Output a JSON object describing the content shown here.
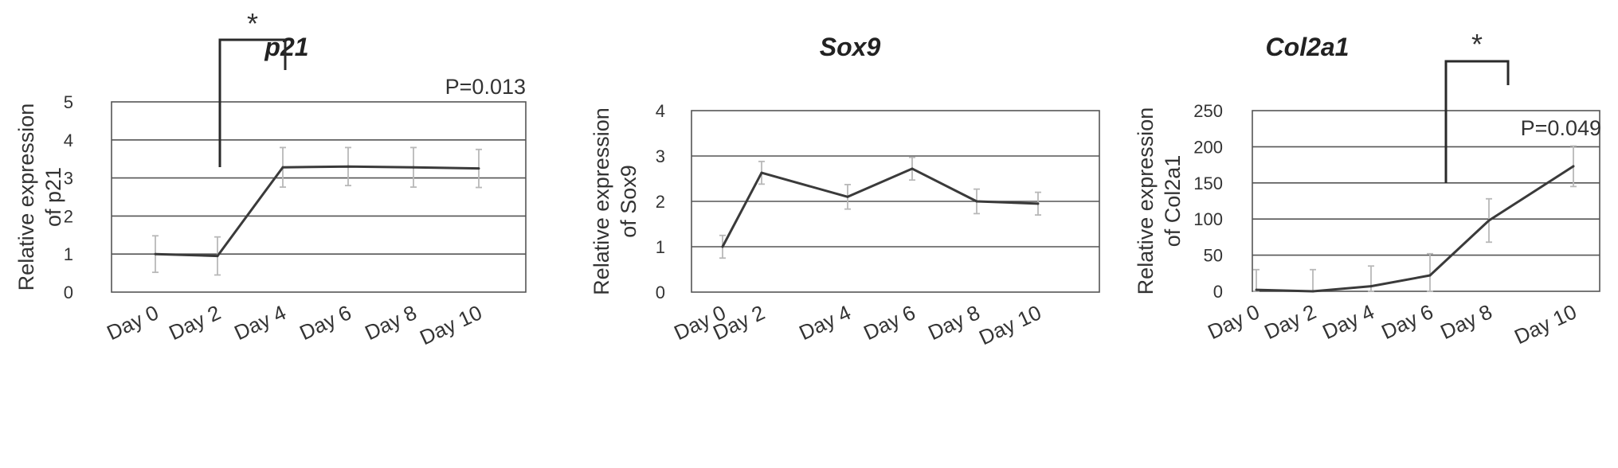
{
  "chart_data": [
    {
      "type": "line",
      "title": "p21",
      "ylabel": "Relative expression of p21",
      "ylabel_lines": [
        "Relative expression",
        "of p21"
      ],
      "xlabel": "",
      "categories": [
        "Day 0",
        "Day 2",
        "Day 4",
        "Day 6",
        "Day 8",
        "Day 10"
      ],
      "y_ticks": [
        "0",
        "1",
        "2",
        "3",
        "4",
        "5"
      ],
      "ylim": [
        0,
        5
      ],
      "values": [
        1.0,
        0.95,
        3.28,
        3.3,
        3.28,
        3.25
      ],
      "errors": [
        0.48,
        0.5,
        0.52,
        0.5,
        0.52,
        0.5
      ],
      "grid": true,
      "annotation": "P=0.013",
      "significance": {
        "from": "Day 2",
        "to": "Day 4",
        "label": "*"
      }
    },
    {
      "type": "line",
      "title": "Sox9",
      "ylabel": "Relative expression of Sox9",
      "ylabel_lines": [
        "Relative expression",
        "of Sox9"
      ],
      "xlabel": "",
      "categories": [
        "Day 0",
        "Day 2",
        "Day 4",
        "Day 6",
        "Day 8",
        "Day 10"
      ],
      "y_ticks": [
        "0",
        "1",
        "2",
        "3",
        "4"
      ],
      "ylim": [
        0,
        4
      ],
      "values": [
        1.0,
        2.63,
        2.1,
        2.72,
        2.0,
        1.95
      ],
      "errors": [
        0.25,
        0.25,
        0.27,
        0.25,
        0.27,
        0.25
      ],
      "grid": true
    },
    {
      "type": "line",
      "title": "Col2a1",
      "ylabel": "Relative expression of Col2a1",
      "ylabel_lines": [
        "Relative expression",
        "of Col2a1"
      ],
      "xlabel": "",
      "categories": [
        "Day 0",
        "Day 2",
        "Day 4",
        "Day 6",
        "Day 8",
        "Day 10"
      ],
      "y_ticks": [
        "0",
        "50",
        "100",
        "150",
        "200",
        "250"
      ],
      "ylim": [
        0,
        250
      ],
      "values": [
        2,
        0,
        7,
        22,
        98,
        173
      ],
      "errors": [
        28,
        30,
        28,
        30,
        30,
        28
      ],
      "grid": true,
      "annotation": "P=0.049",
      "significance": {
        "from": "Day 6",
        "to": "Day 8",
        "label": "*"
      }
    }
  ],
  "colors": {
    "line": "#3a3a3a",
    "error_bar": "#b8b8b8",
    "grid": "#555555",
    "axis_text": "#333333",
    "title": "#222222"
  }
}
